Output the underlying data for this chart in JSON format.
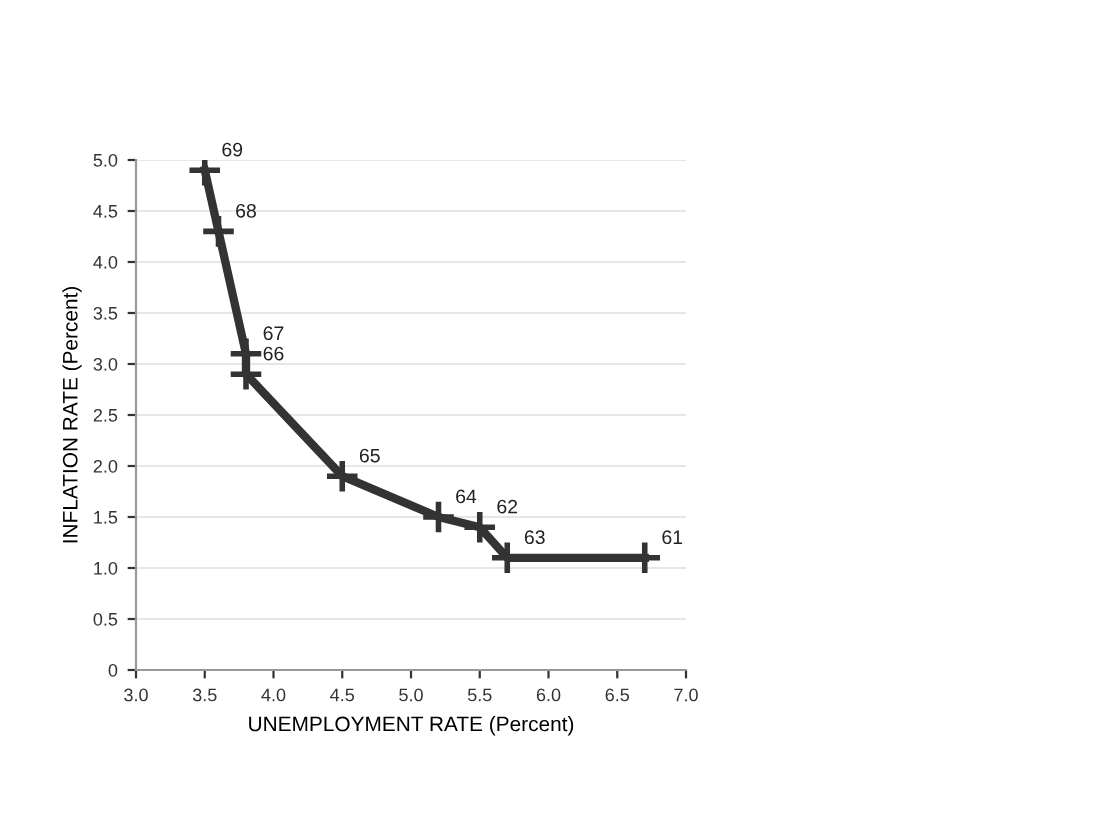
{
  "chart_data": {
    "type": "line",
    "xlabel": "UNEMPLOYMENT RATE (Percent)",
    "ylabel": "INFLATION RATE (Percent)",
    "series": [
      {
        "color": "#333333",
        "x": [
          3.5,
          3.6,
          3.8,
          3.8,
          4.5,
          5.2,
          5.5,
          5.7,
          6.7
        ],
        "values": [
          4.9,
          4.3,
          3.1,
          2.9,
          1.9,
          1.5,
          1.4,
          1.1,
          1.1
        ]
      }
    ],
    "annotations": [
      {
        "text": "69",
        "x": 3.5,
        "y": 4.9
      },
      {
        "text": "68",
        "x": 3.6,
        "y": 4.3
      },
      {
        "text": "67",
        "x": 3.8,
        "y": 3.1
      },
      {
        "text": "66",
        "x": 3.8,
        "y": 2.9
      },
      {
        "text": "65",
        "x": 4.5,
        "y": 1.9
      },
      {
        "text": "64",
        "x": 5.2,
        "y": 1.5
      },
      {
        "text": "62",
        "x": 5.5,
        "y": 1.4
      },
      {
        "text": "63",
        "x": 5.7,
        "y": 1.1
      },
      {
        "text": "61",
        "x": 6.7,
        "y": 1.1
      }
    ],
    "xlim": [
      3.0,
      7.0
    ],
    "xticks": [
      {
        "value": 3,
        "label": "3.0"
      },
      3.5,
      {
        "value": 4,
        "label": "4.0"
      },
      4.5,
      {
        "value": 5,
        "label": "5.0"
      },
      5.5,
      {
        "value": 6,
        "label": "6.0"
      },
      6.5,
      {
        "value": 7,
        "label": "7.0"
      }
    ],
    "ylim": [
      0,
      5.0
    ],
    "yticks": [
      0,
      0.5,
      {
        "value": 1,
        "label": "1.0"
      },
      1.5,
      {
        "value": 2,
        "label": "2.0"
      },
      2.5,
      {
        "value": 3,
        "label": "3.0"
      },
      3.5,
      {
        "value": 4,
        "label": "4.0"
      },
      4.5,
      {
        "value": 5,
        "label": "5.0"
      }
    ],
    "grid": "y",
    "marker": "cross",
    "line_style": "solid"
  }
}
